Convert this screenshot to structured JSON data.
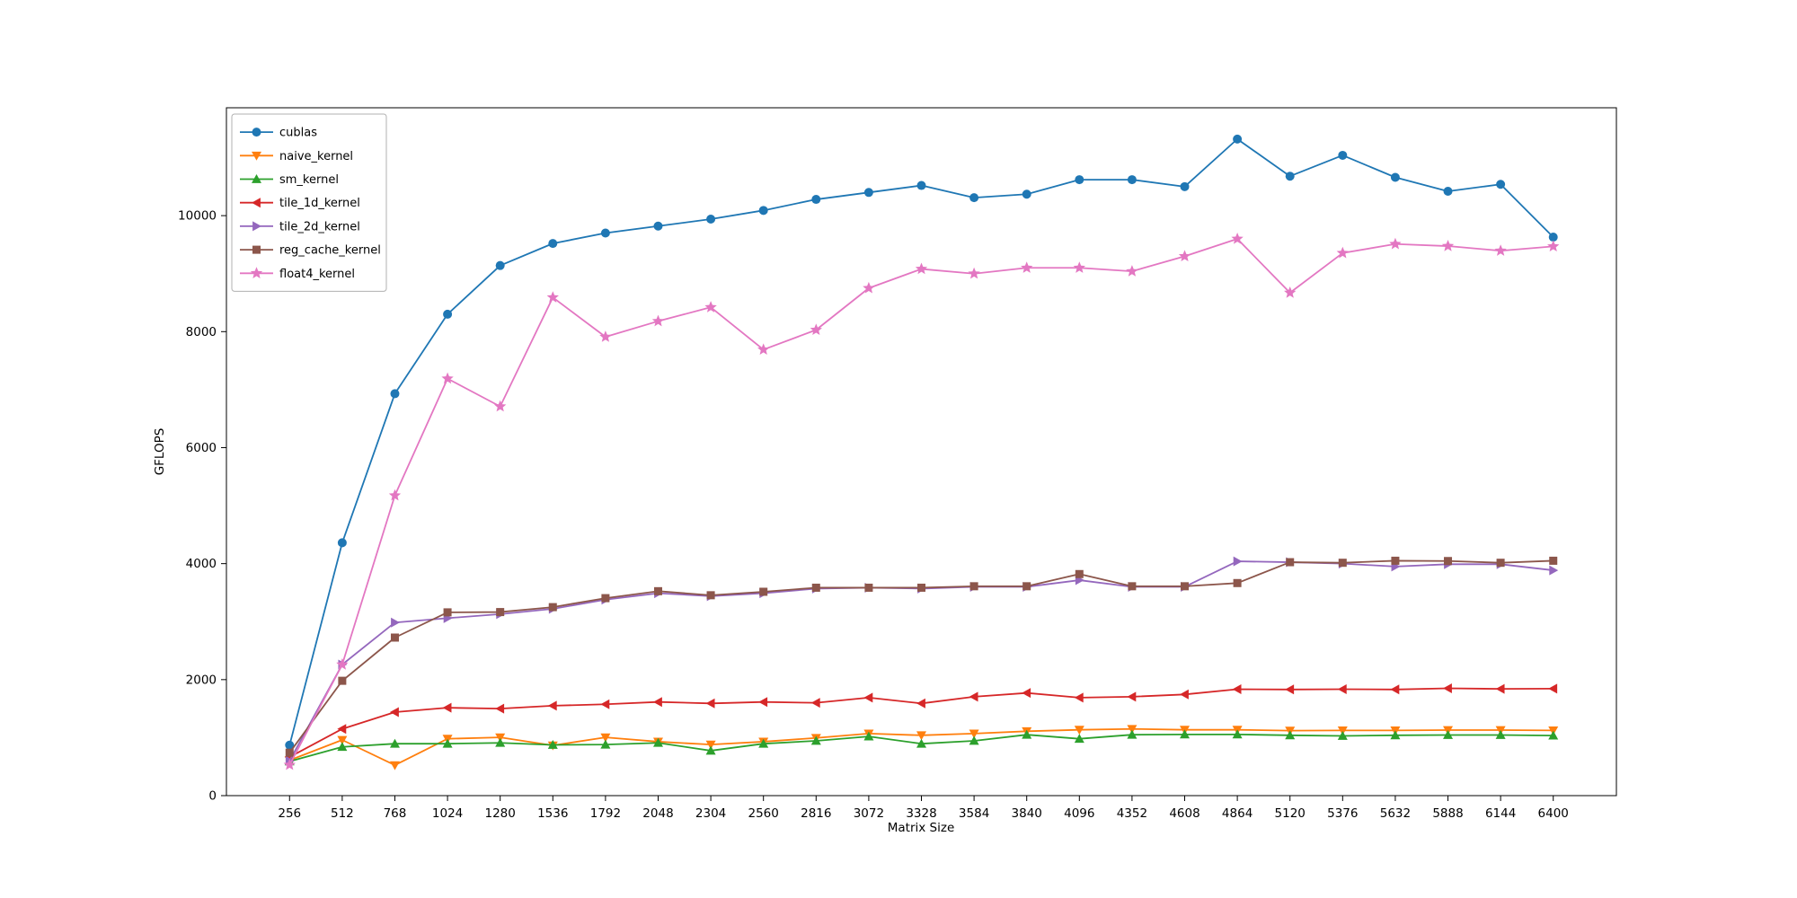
{
  "figure": {
    "background": "#ffffff"
  },
  "chart_data": {
    "type": "line",
    "title": "",
    "xlabel": "Matrix Size",
    "ylabel": "GFLOPS",
    "grid": false,
    "legend_position": "upper-left",
    "x": [
      256,
      512,
      768,
      1024,
      1280,
      1536,
      1792,
      2048,
      2304,
      2560,
      2816,
      3072,
      3328,
      3584,
      3840,
      4096,
      4352,
      4608,
      4864,
      5120,
      5376,
      5632,
      5888,
      6144,
      6400
    ],
    "xticks": [
      256,
      512,
      768,
      1024,
      1280,
      1536,
      1792,
      2048,
      2304,
      2560,
      2816,
      3072,
      3328,
      3584,
      3840,
      4096,
      4352,
      4608,
      4864,
      5120,
      5376,
      5632,
      5888,
      6144,
      6400
    ],
    "yticks": [
      0,
      2000,
      4000,
      6000,
      8000,
      10000
    ],
    "xlim": [
      -51,
      6707
    ],
    "ylim": [
      0,
      11860
    ],
    "series": [
      {
        "name": "cublas",
        "color": "#1f77b4",
        "marker": "circle",
        "values": [
          870,
          4360,
          6930,
          8300,
          9140,
          9520,
          9700,
          9820,
          9940,
          10090,
          10280,
          10400,
          10520,
          10310,
          10370,
          10620,
          10620,
          10500,
          11320,
          10680,
          11040,
          10660,
          10420,
          10540,
          9630
        ]
      },
      {
        "name": "naive_kernel",
        "color": "#ff7f0e",
        "marker": "triangle-down",
        "values": [
          610,
          960,
          525,
          980,
          1005,
          865,
          1005,
          930,
          880,
          930,
          995,
          1070,
          1040,
          1070,
          1110,
          1135,
          1150,
          1135,
          1135,
          1120,
          1125,
          1125,
          1130,
          1130,
          1125
        ]
      },
      {
        "name": "sm_kernel",
        "color": "#2ca02c",
        "marker": "triangle-up",
        "values": [
          590,
          840,
          895,
          895,
          910,
          875,
          880,
          910,
          775,
          895,
          945,
          1020,
          895,
          945,
          1050,
          980,
          1050,
          1055,
          1055,
          1040,
          1030,
          1040,
          1045,
          1045,
          1035
        ]
      },
      {
        "name": "tile_1d_kernel",
        "color": "#d62728",
        "marker": "triangle-left",
        "values": [
          665,
          1150,
          1440,
          1515,
          1500,
          1550,
          1575,
          1615,
          1590,
          1615,
          1600,
          1690,
          1590,
          1705,
          1770,
          1690,
          1705,
          1745,
          1835,
          1830,
          1835,
          1830,
          1850,
          1840,
          1845
        ]
      },
      {
        "name": "tile_2d_kernel",
        "color": "#9467bd",
        "marker": "triangle-right",
        "values": [
          600,
          2260,
          2985,
          3060,
          3130,
          3220,
          3380,
          3490,
          3440,
          3490,
          3570,
          3585,
          3570,
          3600,
          3600,
          3715,
          3600,
          3600,
          4040,
          4025,
          4000,
          3950,
          3990,
          3990,
          3885
        ]
      },
      {
        "name": "reg_cache_kernel",
        "color": "#8c564b",
        "marker": "square",
        "values": [
          740,
          1980,
          2725,
          3160,
          3165,
          3250,
          3405,
          3525,
          3455,
          3515,
          3585,
          3585,
          3585,
          3610,
          3610,
          3820,
          3610,
          3610,
          3665,
          4025,
          4015,
          4050,
          4045,
          4015,
          4050
        ]
      },
      {
        "name": "float4_kernel",
        "color": "#e377c2",
        "marker": "star",
        "values": [
          530,
          2260,
          5175,
          7190,
          6710,
          8590,
          7910,
          8180,
          8420,
          7690,
          8030,
          8750,
          9080,
          9000,
          9100,
          9100,
          9040,
          9300,
          9600,
          8670,
          9355,
          9510,
          9475,
          9395,
          9470
        ]
      }
    ]
  }
}
